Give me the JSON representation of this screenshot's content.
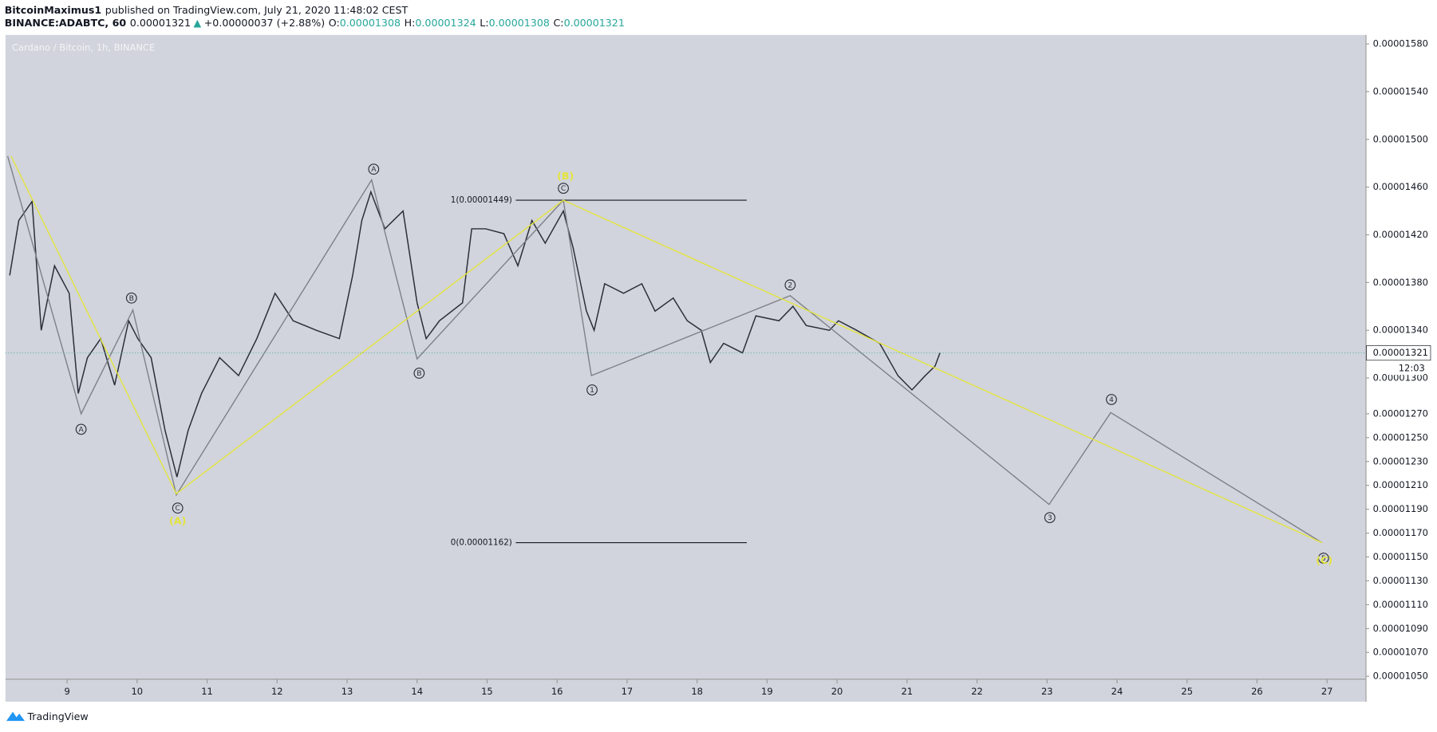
{
  "header": {
    "author": "BitcoinMaximus1",
    "published": "published on TradingView.com, July 21, 2020 11:48:02 CEST",
    "symbol": "BINANCE:ADABTC, 60",
    "last": "0.00001321",
    "arrow": "▲",
    "change": "+0.00000037 (+2.88%)",
    "open_label": "O:",
    "open": "0.00001308",
    "high_label": "H:",
    "high": "0.00001324",
    "low_label": "L:",
    "low": "0.00001308",
    "close_label": "C:",
    "close": "0.00001321"
  },
  "footer": {
    "brand": "TradingView"
  },
  "chart_data": {
    "type": "line",
    "title": "Cardano / Bitcoin, 1h, BINANCE",
    "xlim": [
      8.12,
      27.55
    ],
    "xticks": [
      9,
      10,
      11,
      12,
      13,
      14,
      15,
      16,
      17,
      18,
      19,
      20,
      21,
      22,
      23,
      24,
      25,
      26,
      27
    ],
    "ylim": [
      1.041e-05,
      1.586e-05
    ],
    "yticks": [
      {
        "value": 1.58e-05,
        "label": "0.00001580"
      },
      {
        "value": 1.54e-05,
        "label": "0.00001540"
      },
      {
        "value": 1.5e-05,
        "label": "0.00001500"
      },
      {
        "value": 1.46e-05,
        "label": "0.00001460"
      },
      {
        "value": 1.42e-05,
        "label": "0.00001420"
      },
      {
        "value": 1.38e-05,
        "label": "0.00001380"
      },
      {
        "value": 1.34e-05,
        "label": "0.00001340"
      },
      {
        "value": 1.3e-05,
        "label": "0.00001300"
      },
      {
        "value": 1.27e-05,
        "label": "0.00001270"
      },
      {
        "value": 1.25e-05,
        "label": "0.00001250"
      },
      {
        "value": 1.23e-05,
        "label": "0.00001230"
      },
      {
        "value": 1.21e-05,
        "label": "0.00001210"
      },
      {
        "value": 1.19e-05,
        "label": "0.00001190"
      },
      {
        "value": 1.17e-05,
        "label": "0.00001170"
      },
      {
        "value": 1.15e-05,
        "label": "0.00001150"
      },
      {
        "value": 1.13e-05,
        "label": "0.00001130"
      },
      {
        "value": 1.11e-05,
        "label": "0.00001110"
      },
      {
        "value": 1.09e-05,
        "label": "0.00001090"
      },
      {
        "value": 1.07e-05,
        "label": "0.00001070"
      },
      {
        "value": 1.05e-05,
        "label": "0.00001050"
      }
    ],
    "series": [
      {
        "color": "#2a2e39",
        "x": [
          8.18,
          8.31,
          8.5,
          8.63,
          8.82,
          9.03,
          9.16,
          9.29,
          9.48,
          9.68,
          9.88,
          10.01,
          10.2,
          10.4,
          10.57,
          10.73,
          10.92,
          11.18,
          11.45,
          11.71,
          11.97,
          12.23,
          12.56,
          12.89,
          13.08,
          13.21,
          13.34,
          13.54,
          13.8,
          14.0,
          14.13,
          14.32,
          14.65,
          14.78,
          14.98,
          15.24,
          15.44,
          15.64,
          15.83,
          16.09,
          16.23,
          16.42,
          16.53,
          16.68,
          16.95,
          17.21,
          17.4,
          17.66,
          17.86,
          18.06,
          18.19,
          18.38,
          18.65,
          18.84,
          19.17,
          19.37,
          19.56,
          19.89,
          20.02,
          20.28,
          20.61,
          20.87,
          21.07,
          21.26,
          21.4,
          21.47
        ],
        "values": [
          1.386e-05,
          1.432e-05,
          1.448e-05,
          1.34e-05,
          1.394e-05,
          1.371e-05,
          1.287e-05,
          1.317e-05,
          1.333e-05,
          1.294e-05,
          1.348e-05,
          1.333e-05,
          1.317e-05,
          1.256e-05,
          1.217e-05,
          1.256e-05,
          1.287e-05,
          1.317e-05,
          1.302e-05,
          1.333e-05,
          1.371e-05,
          1.348e-05,
          1.34e-05,
          1.333e-05,
          1.386e-05,
          1.432e-05,
          1.456e-05,
          1.425e-05,
          1.44e-05,
          1.363e-05,
          1.333e-05,
          1.348e-05,
          1.363e-05,
          1.425e-05,
          1.425e-05,
          1.421e-05,
          1.394e-05,
          1.432e-05,
          1.413e-05,
          1.44e-05,
          1.409e-05,
          1.356e-05,
          1.34e-05,
          1.379e-05,
          1.371e-05,
          1.379e-05,
          1.356e-05,
          1.367e-05,
          1.348e-05,
          1.34e-05,
          1.313e-05,
          1.329e-05,
          1.321e-05,
          1.352e-05,
          1.348e-05,
          1.36e-05,
          1.344e-05,
          1.34e-05,
          1.348e-05,
          1.34e-05,
          1.329e-05,
          1.302e-05,
          1.29e-05,
          1.302e-05,
          1.31e-05,
          1.321e-05
        ]
      },
      {
        "color": "#7d7f86",
        "x": [
          8.15,
          9.2,
          9.94,
          10.56,
          13.35,
          14.0,
          16.09,
          16.49,
          19.33,
          23.03,
          23.91,
          26.93
        ],
        "values": [
          1.486e-05,
          1.27e-05,
          1.357e-05,
          1.202e-05,
          1.466e-05,
          1.316e-05,
          1.449e-05,
          1.302e-05,
          1.369e-05,
          1.194e-05,
          1.271e-05,
          1.162e-05
        ]
      },
      {
        "color": "#e4e43c",
        "x": [
          8.2,
          10.56,
          16.09,
          26.93
        ],
        "values": [
          1.486e-05,
          1.203e-05,
          1.449e-05,
          1.162e-05
        ]
      }
    ],
    "fib": {
      "x": [
        15.41,
        18.71
      ],
      "levels": [
        {
          "label": "1(0.00001449)",
          "value": 1.449e-05
        },
        {
          "label": "0(0.00001162)",
          "value": 1.162e-05
        }
      ]
    },
    "wave_labels": [
      {
        "label": "A",
        "x": 9.2,
        "y": 1.257e-05,
        "color": "#2a2e39"
      },
      {
        "label": "B",
        "x": 9.92,
        "y": 1.367e-05,
        "color": "#2a2e39"
      },
      {
        "label": "C",
        "x": 10.58,
        "y": 1.191e-05,
        "color": "#2a2e39"
      },
      {
        "label": "A",
        "x": 13.38,
        "y": 1.475e-05,
        "color": "#2a2e39"
      },
      {
        "label": "B",
        "x": 14.03,
        "y": 1.304e-05,
        "color": "#2a2e39"
      },
      {
        "label": "C",
        "x": 16.09,
        "y": 1.459e-05,
        "color": "#2a2e39"
      },
      {
        "label": "1",
        "x": 16.5,
        "y": 1.29e-05,
        "color": "#2a2e39"
      },
      {
        "label": "2",
        "x": 19.33,
        "y": 1.378e-05,
        "color": "#2a2e39"
      },
      {
        "label": "3",
        "x": 23.04,
        "y": 1.183e-05,
        "color": "#2a2e39"
      },
      {
        "label": "4",
        "x": 23.92,
        "y": 1.282e-05,
        "color": "#2a2e39"
      },
      {
        "label": "5",
        "x": 26.95,
        "y": 1.149e-05,
        "color": "#2a2e39"
      },
      {
        "label": "(B)",
        "x": 16.12,
        "y": 1.469e-05,
        "color": "#e4e43c"
      },
      {
        "label": "(A)",
        "x": 10.58,
        "y": 1.18e-05,
        "color": "#e4e43c"
      },
      {
        "label": "(C)",
        "x": 26.96,
        "y": 1.147e-05,
        "color": "#e4e43c"
      }
    ],
    "price_marker": {
      "value": 1.321e-05,
      "label": "0.00001321",
      "countdown": "12:03"
    }
  }
}
